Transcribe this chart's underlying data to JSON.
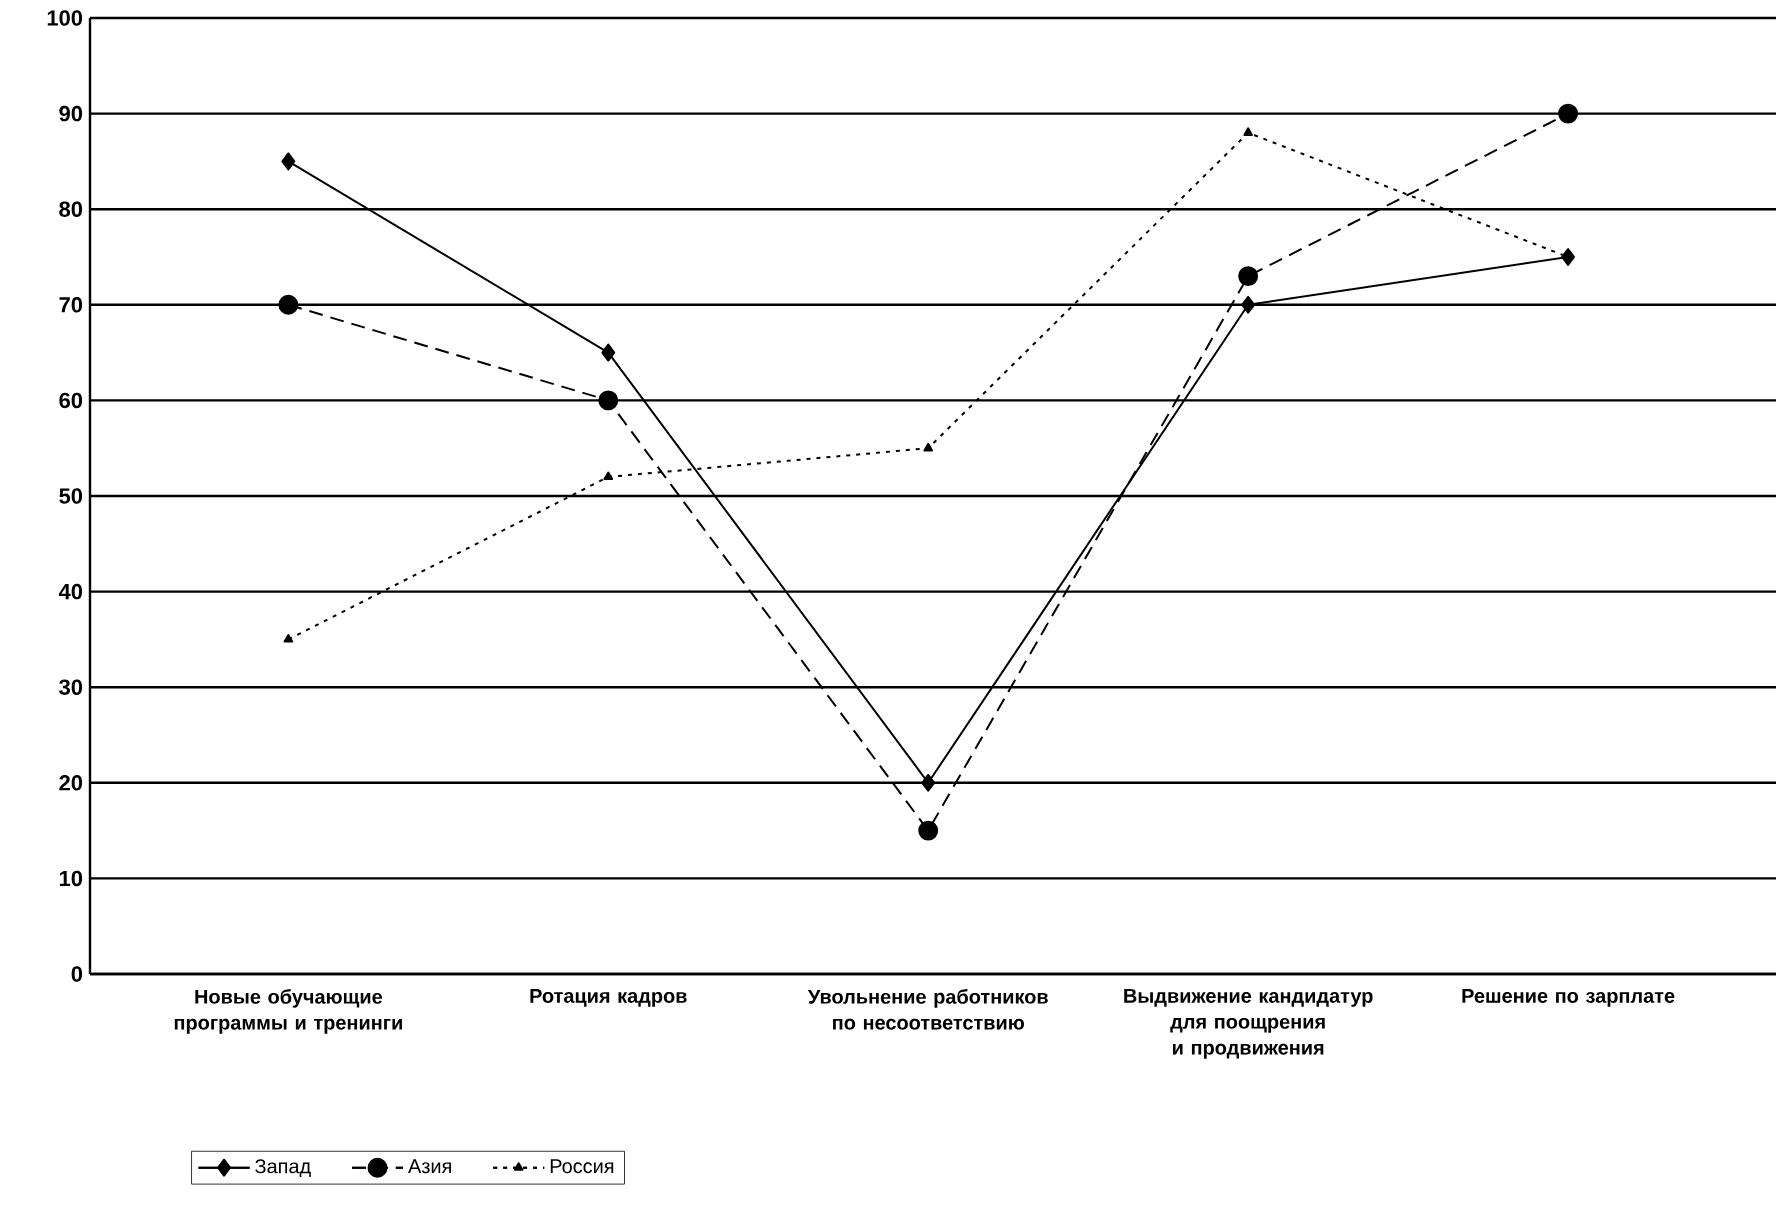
{
  "chart_data": {
    "type": "line",
    "categories": [
      "Новые обучающие программы и тренинги",
      "Ротация кадров",
      "Увольнение работников по несоответствию",
      "Выдвижение кандидатур для поощрения и продвижения",
      "Решение по зарплате"
    ],
    "series": [
      {
        "name": "Запад",
        "color": "#000000",
        "values": [
          85,
          65,
          20,
          70,
          75
        ],
        "marker": "diamond",
        "line_style": "solid"
      },
      {
        "name": "Азия",
        "color": "#000000",
        "values": [
          70,
          60,
          15,
          73,
          90
        ],
        "marker": "circle",
        "line_style": "dashed"
      },
      {
        "name": "Россия",
        "color": "#000000",
        "values": [
          35,
          52,
          55,
          88,
          75
        ],
        "marker": "triangle",
        "line_style": "dotted"
      }
    ],
    "ylim": [
      0,
      100
    ],
    "yticks": [
      0,
      10,
      20,
      30,
      40,
      50,
      60,
      70,
      80,
      90,
      100
    ],
    "grid": "y",
    "legend": "bottom left"
  }
}
